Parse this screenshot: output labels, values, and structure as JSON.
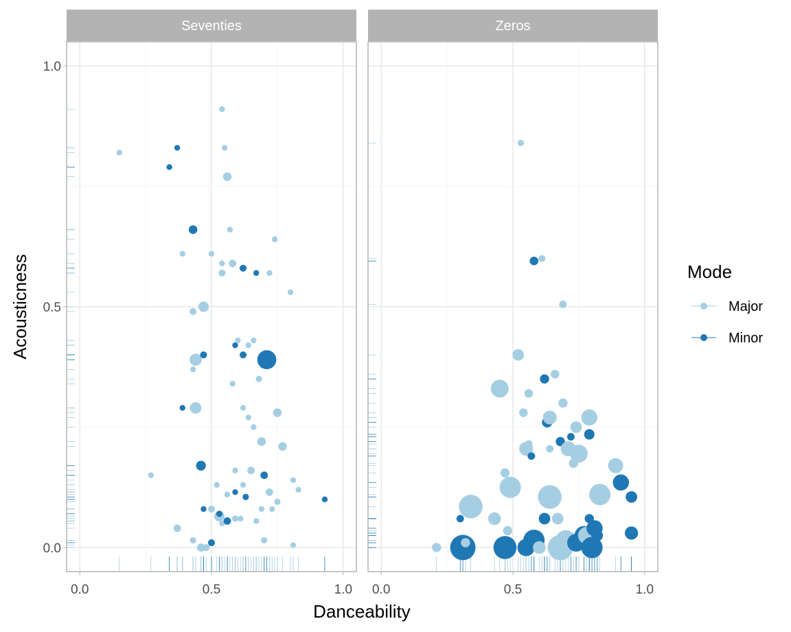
{
  "chart_data": {
    "type": "scatter",
    "xlabel": "Danceability",
    "ylabel": "Acousticness",
    "xlim": [
      -0.05,
      1.05
    ],
    "ylim": [
      -0.05,
      1.05
    ],
    "x_ticks": [
      0.0,
      0.5,
      1.0
    ],
    "x_tick_labels": [
      "0.0",
      "0.5",
      "1.0"
    ],
    "y_ticks": [
      0.0,
      0.5,
      1.0
    ],
    "y_tick_labels": [
      "0.0",
      "0.5",
      "1.0"
    ],
    "grid": true,
    "rug": true,
    "size_encoding": "relative marker size (1 = smallest)",
    "legend": {
      "title": "Mode",
      "position": "right",
      "items": [
        {
          "name": "Major",
          "color": "#a6cee3"
        },
        {
          "name": "Minor",
          "color": "#1f78b4"
        }
      ]
    },
    "facets": [
      {
        "label": "Seventies",
        "points": [
          {
            "x": 0.15,
            "y": 0.82,
            "mode": "Major",
            "size": 1
          },
          {
            "x": 0.27,
            "y": 0.15,
            "mode": "Major",
            "size": 1
          },
          {
            "x": 0.34,
            "y": 0.79,
            "mode": "Minor",
            "size": 1
          },
          {
            "x": 0.37,
            "y": 0.83,
            "mode": "Minor",
            "size": 1
          },
          {
            "x": 0.37,
            "y": 0.04,
            "mode": "Major",
            "size": 1.3
          },
          {
            "x": 0.39,
            "y": 0.29,
            "mode": "Minor",
            "size": 1
          },
          {
            "x": 0.39,
            "y": 0.61,
            "mode": "Major",
            "size": 1
          },
          {
            "x": 0.43,
            "y": 0.66,
            "mode": "Minor",
            "size": 1.5
          },
          {
            "x": 0.43,
            "y": 0.49,
            "mode": "Major",
            "size": 1.2
          },
          {
            "x": 0.43,
            "y": 0.37,
            "mode": "Major",
            "size": 1
          },
          {
            "x": 0.43,
            "y": 0.015,
            "mode": "Major",
            "size": 1.1
          },
          {
            "x": 0.44,
            "y": 0.39,
            "mode": "Major",
            "size": 2.1
          },
          {
            "x": 0.44,
            "y": 0.29,
            "mode": "Major",
            "size": 2
          },
          {
            "x": 0.46,
            "y": 0.17,
            "mode": "Minor",
            "size": 1.7
          },
          {
            "x": 0.46,
            "y": 0.0,
            "mode": "Major",
            "size": 1.4
          },
          {
            "x": 0.47,
            "y": 0.5,
            "mode": "Major",
            "size": 1.8
          },
          {
            "x": 0.47,
            "y": 0.4,
            "mode": "Minor",
            "size": 1.2
          },
          {
            "x": 0.47,
            "y": 0.08,
            "mode": "Minor",
            "size": 1
          },
          {
            "x": 0.48,
            "y": 0.0,
            "mode": "Major",
            "size": 1.2
          },
          {
            "x": 0.5,
            "y": 0.61,
            "mode": "Major",
            "size": 1
          },
          {
            "x": 0.5,
            "y": 0.08,
            "mode": "Major",
            "size": 1.2
          },
          {
            "x": 0.5,
            "y": 0.01,
            "mode": "Minor",
            "size": 1.2
          },
          {
            "x": 0.52,
            "y": 0.13,
            "mode": "Major",
            "size": 1
          },
          {
            "x": 0.53,
            "y": 0.065,
            "mode": "Major",
            "size": 1.8
          },
          {
            "x": 0.53,
            "y": 0.07,
            "mode": "Minor",
            "size": 1.1
          },
          {
            "x": 0.54,
            "y": 0.91,
            "mode": "Major",
            "size": 1
          },
          {
            "x": 0.54,
            "y": 0.59,
            "mode": "Major",
            "size": 1
          },
          {
            "x": 0.54,
            "y": 0.57,
            "mode": "Major",
            "size": 1.2
          },
          {
            "x": 0.54,
            "y": 0.05,
            "mode": "Major",
            "size": 1
          },
          {
            "x": 0.55,
            "y": 0.83,
            "mode": "Major",
            "size": 1
          },
          {
            "x": 0.56,
            "y": 0.77,
            "mode": "Major",
            "size": 1.5
          },
          {
            "x": 0.56,
            "y": 0.11,
            "mode": "Major",
            "size": 1
          },
          {
            "x": 0.56,
            "y": 0.055,
            "mode": "Minor",
            "size": 1.3
          },
          {
            "x": 0.57,
            "y": 0.66,
            "mode": "Major",
            "size": 1
          },
          {
            "x": 0.58,
            "y": 0.59,
            "mode": "Major",
            "size": 1.3
          },
          {
            "x": 0.58,
            "y": 0.34,
            "mode": "Major",
            "size": 1
          },
          {
            "x": 0.59,
            "y": 0.42,
            "mode": "Minor",
            "size": 1
          },
          {
            "x": 0.59,
            "y": 0.16,
            "mode": "Major",
            "size": 1
          },
          {
            "x": 0.59,
            "y": 0.115,
            "mode": "Minor",
            "size": 1
          },
          {
            "x": 0.59,
            "y": 0.06,
            "mode": "Major",
            "size": 1.1
          },
          {
            "x": 0.6,
            "y": 0.43,
            "mode": "Major",
            "size": 1
          },
          {
            "x": 0.61,
            "y": 0.06,
            "mode": "Major",
            "size": 1
          },
          {
            "x": 0.62,
            "y": 0.58,
            "mode": "Minor",
            "size": 1.2
          },
          {
            "x": 0.62,
            "y": 0.4,
            "mode": "Minor",
            "size": 1.2
          },
          {
            "x": 0.62,
            "y": 0.29,
            "mode": "Major",
            "size": 1
          },
          {
            "x": 0.62,
            "y": 0.13,
            "mode": "Major",
            "size": 1
          },
          {
            "x": 0.63,
            "y": 0.105,
            "mode": "Minor",
            "size": 1.1
          },
          {
            "x": 0.64,
            "y": 0.42,
            "mode": "Major",
            "size": 1
          },
          {
            "x": 0.64,
            "y": 0.27,
            "mode": "Major",
            "size": 1
          },
          {
            "x": 0.65,
            "y": 0.16,
            "mode": "Major",
            "size": 1.3
          },
          {
            "x": 0.66,
            "y": 0.25,
            "mode": "Major",
            "size": 1
          },
          {
            "x": 0.66,
            "y": 0.43,
            "mode": "Major",
            "size": 1
          },
          {
            "x": 0.67,
            "y": 0.57,
            "mode": "Minor",
            "size": 1
          },
          {
            "x": 0.67,
            "y": 0.055,
            "mode": "Major",
            "size": 1
          },
          {
            "x": 0.68,
            "y": 0.35,
            "mode": "Major",
            "size": 1.1
          },
          {
            "x": 0.69,
            "y": 0.22,
            "mode": "Major",
            "size": 1.5
          },
          {
            "x": 0.69,
            "y": 0.08,
            "mode": "Major",
            "size": 1
          },
          {
            "x": 0.7,
            "y": 0.015,
            "mode": "Major",
            "size": 1.1
          },
          {
            "x": 0.7,
            "y": 0.15,
            "mode": "Minor",
            "size": 1.3
          },
          {
            "x": 0.71,
            "y": 0.39,
            "mode": "Minor",
            "size": 3.3
          },
          {
            "x": 0.72,
            "y": 0.57,
            "mode": "Major",
            "size": 1
          },
          {
            "x": 0.72,
            "y": 0.115,
            "mode": "Major",
            "size": 1.3
          },
          {
            "x": 0.73,
            "y": 0.08,
            "mode": "Major",
            "size": 1
          },
          {
            "x": 0.74,
            "y": 0.64,
            "mode": "Major",
            "size": 1
          },
          {
            "x": 0.75,
            "y": 0.28,
            "mode": "Major",
            "size": 1.5
          },
          {
            "x": 0.75,
            "y": 0.095,
            "mode": "Major",
            "size": 1.1
          },
          {
            "x": 0.77,
            "y": 0.21,
            "mode": "Major",
            "size": 1.5
          },
          {
            "x": 0.8,
            "y": 0.53,
            "mode": "Major",
            "size": 1
          },
          {
            "x": 0.81,
            "y": 0.14,
            "mode": "Major",
            "size": 1
          },
          {
            "x": 0.81,
            "y": 0.005,
            "mode": "Major",
            "size": 1
          },
          {
            "x": 0.83,
            "y": 0.12,
            "mode": "Major",
            "size": 1
          },
          {
            "x": 0.93,
            "y": 0.1,
            "mode": "Minor",
            "size": 1
          }
        ]
      },
      {
        "label": "Zeros",
        "points": [
          {
            "x": 0.21,
            "y": 0.0,
            "mode": "Major",
            "size": 1.6
          },
          {
            "x": 0.3,
            "y": 0.06,
            "mode": "Minor",
            "size": 1.3
          },
          {
            "x": 0.31,
            "y": 0.0,
            "mode": "Minor",
            "size": 4.4
          },
          {
            "x": 0.32,
            "y": 0.01,
            "mode": "Major",
            "size": 1.6
          },
          {
            "x": 0.34,
            "y": 0.085,
            "mode": "Major",
            "size": 4.1
          },
          {
            "x": 0.43,
            "y": 0.06,
            "mode": "Major",
            "size": 2.2
          },
          {
            "x": 0.45,
            "y": 0.33,
            "mode": "Major",
            "size": 3.1
          },
          {
            "x": 0.47,
            "y": 0.0,
            "mode": "Minor",
            "size": 4.0
          },
          {
            "x": 0.47,
            "y": 0.155,
            "mode": "Major",
            "size": 1.6
          },
          {
            "x": 0.48,
            "y": 0.035,
            "mode": "Major",
            "size": 1.6
          },
          {
            "x": 0.49,
            "y": 0.125,
            "mode": "Major",
            "size": 3.7
          },
          {
            "x": 0.52,
            "y": 0.4,
            "mode": "Major",
            "size": 2.0
          },
          {
            "x": 0.53,
            "y": 0.84,
            "mode": "Major",
            "size": 1.1
          },
          {
            "x": 0.54,
            "y": 0.28,
            "mode": "Major",
            "size": 1.5
          },
          {
            "x": 0.55,
            "y": 0.0,
            "mode": "Minor",
            "size": 3.0
          },
          {
            "x": 0.55,
            "y": 0.205,
            "mode": "Major",
            "size": 2.4
          },
          {
            "x": 0.56,
            "y": 0.215,
            "mode": "Major",
            "size": 1.3
          },
          {
            "x": 0.56,
            "y": 0.32,
            "mode": "Major",
            "size": 1.5
          },
          {
            "x": 0.57,
            "y": 0.19,
            "mode": "Minor",
            "size": 1.3
          },
          {
            "x": 0.58,
            "y": 0.595,
            "mode": "Minor",
            "size": 1.5
          },
          {
            "x": 0.58,
            "y": 0.015,
            "mode": "Minor",
            "size": 3.7
          },
          {
            "x": 0.6,
            "y": 0.0,
            "mode": "Major",
            "size": 2.2
          },
          {
            "x": 0.61,
            "y": 0.6,
            "mode": "Major",
            "size": 1.2
          },
          {
            "x": 0.62,
            "y": 0.35,
            "mode": "Minor",
            "size": 1.6
          },
          {
            "x": 0.62,
            "y": 0.06,
            "mode": "Minor",
            "size": 2.0
          },
          {
            "x": 0.63,
            "y": 0.26,
            "mode": "Minor",
            "size": 1.8
          },
          {
            "x": 0.64,
            "y": 0.27,
            "mode": "Major",
            "size": 2.4
          },
          {
            "x": 0.64,
            "y": 0.205,
            "mode": "Major",
            "size": 1.3
          },
          {
            "x": 0.64,
            "y": 0.105,
            "mode": "Major",
            "size": 4.1
          },
          {
            "x": 0.66,
            "y": 0.36,
            "mode": "Major",
            "size": 1.5
          },
          {
            "x": 0.67,
            "y": 0.06,
            "mode": "Major",
            "size": 2.0
          },
          {
            "x": 0.68,
            "y": 0.0,
            "mode": "Major",
            "size": 4.4
          },
          {
            "x": 0.68,
            "y": 0.22,
            "mode": "Minor",
            "size": 1.6
          },
          {
            "x": 0.69,
            "y": 0.505,
            "mode": "Major",
            "size": 1.3
          },
          {
            "x": 0.69,
            "y": 0.3,
            "mode": "Major",
            "size": 1.6
          },
          {
            "x": 0.7,
            "y": 0.015,
            "mode": "Major",
            "size": 3.5
          },
          {
            "x": 0.71,
            "y": 0.205,
            "mode": "Major",
            "size": 2.6
          },
          {
            "x": 0.72,
            "y": 0.23,
            "mode": "Minor",
            "size": 1.3
          },
          {
            "x": 0.73,
            "y": 0.175,
            "mode": "Major",
            "size": 1.6
          },
          {
            "x": 0.74,
            "y": 0.25,
            "mode": "Major",
            "size": 2.0
          },
          {
            "x": 0.74,
            "y": 0.01,
            "mode": "Minor",
            "size": 3.1
          },
          {
            "x": 0.75,
            "y": 0.195,
            "mode": "Major",
            "size": 3.1
          },
          {
            "x": 0.77,
            "y": 0.025,
            "mode": "Minor",
            "size": 3.3
          },
          {
            "x": 0.78,
            "y": 0.025,
            "mode": "Major",
            "size": 3.0
          },
          {
            "x": 0.79,
            "y": 0.27,
            "mode": "Major",
            "size": 2.8
          },
          {
            "x": 0.79,
            "y": 0.235,
            "mode": "Minor",
            "size": 1.8
          },
          {
            "x": 0.79,
            "y": 0.06,
            "mode": "Minor",
            "size": 1.6
          },
          {
            "x": 0.8,
            "y": 0.0,
            "mode": "Minor",
            "size": 3.7
          },
          {
            "x": 0.81,
            "y": 0.04,
            "mode": "Minor",
            "size": 2.8
          },
          {
            "x": 0.82,
            "y": 0.025,
            "mode": "Minor",
            "size": 2.0
          },
          {
            "x": 0.83,
            "y": 0.11,
            "mode": "Major",
            "size": 3.7
          },
          {
            "x": 0.89,
            "y": 0.17,
            "mode": "Major",
            "size": 2.6
          },
          {
            "x": 0.91,
            "y": 0.135,
            "mode": "Minor",
            "size": 2.8
          },
          {
            "x": 0.95,
            "y": 0.03,
            "mode": "Minor",
            "size": 2.3
          },
          {
            "x": 0.95,
            "y": 0.105,
            "mode": "Minor",
            "size": 2.0
          }
        ]
      }
    ]
  }
}
